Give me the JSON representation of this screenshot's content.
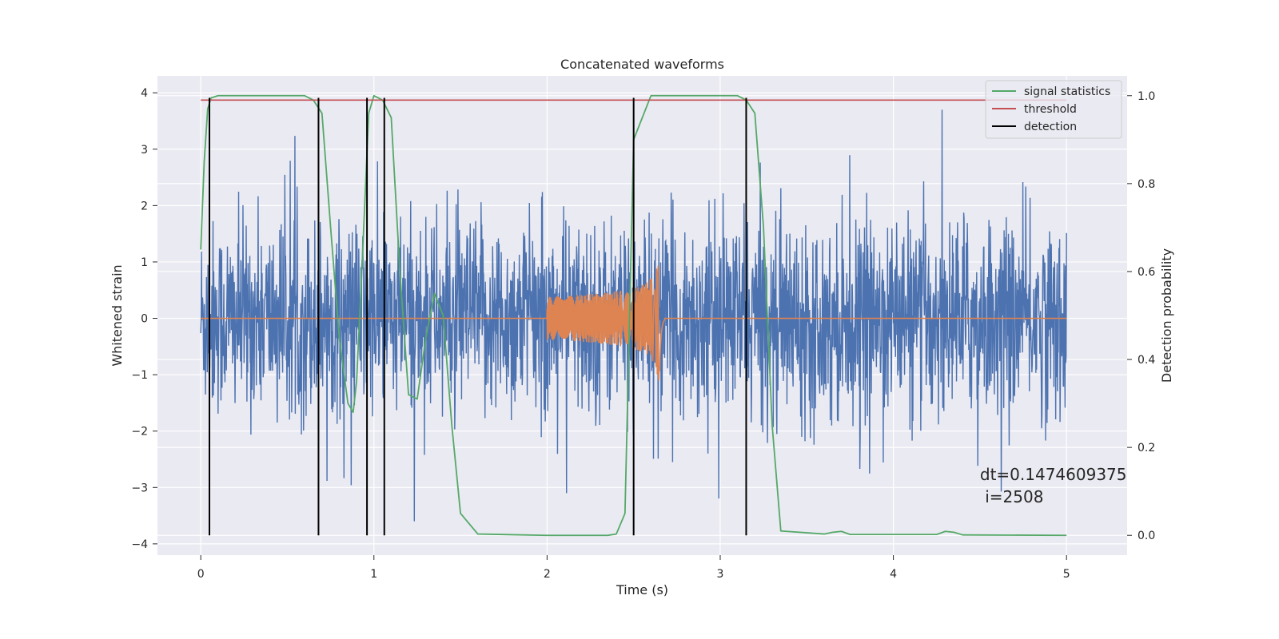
{
  "chart_data": {
    "type": "line",
    "title": "Concatenated waveforms",
    "xlabel": "Time (s)",
    "ylabel": "Whitened strain",
    "ylabel_right": "Detection probability",
    "xlim": [
      -0.25,
      5.35
    ],
    "ylim": [
      -4.2,
      4.3
    ],
    "ylim_right": [
      -0.045,
      1.045
    ],
    "xticks": [
      0,
      1,
      2,
      3,
      4,
      5
    ],
    "yticks": [
      -4,
      -3,
      -2,
      -1,
      0,
      1,
      2,
      3,
      4
    ],
    "yticks_right": [
      0.0,
      0.2,
      0.4,
      0.6,
      0.8,
      1.0
    ],
    "ytick_labels": [
      "−4",
      "−3",
      "−2",
      "−1",
      "0",
      "1",
      "2",
      "3",
      "4"
    ],
    "ytick_right_labels": [
      "0.0",
      "0.2",
      "0.4",
      "0.6",
      "0.8",
      "1.0"
    ],
    "grid": true,
    "legend_position": "upper-right",
    "annotation": {
      "line1": "dt=0.1474609375",
      "line2": " i=2508",
      "x": 4.5,
      "y": -2.9
    },
    "noise": {
      "color": "#4c72b0",
      "x_range": [
        0,
        5
      ],
      "approx_range": [
        -3.6,
        3.7
      ]
    },
    "chirp": {
      "color": "#dd8452",
      "start": 2.0,
      "merger": 2.65,
      "peak_amplitude": 1.45
    },
    "series": [
      {
        "name": "signal statistics",
        "color": "#55a868",
        "axis": "right",
        "x": [
          0,
          0.02,
          0.04,
          0.06,
          0.1,
          0.2,
          0.6,
          0.65,
          0.7,
          0.75,
          0.8,
          0.85,
          0.88,
          0.9,
          0.93,
          0.97,
          1.0,
          1.05,
          1.1,
          1.15,
          1.2,
          1.25,
          1.3,
          1.35,
          1.4,
          1.45,
          1.5,
          1.6,
          2.0,
          2.35,
          2.4,
          2.45,
          2.5,
          2.6,
          3.1,
          3.15,
          3.2,
          3.25,
          3.3,
          3.35,
          3.6,
          3.65,
          3.7,
          3.75,
          4.25,
          4.3,
          4.35,
          4.4,
          5.0
        ],
        "y": [
          0.65,
          0.85,
          0.97,
          0.995,
          1.0,
          1.0,
          1.0,
          0.99,
          0.96,
          0.7,
          0.45,
          0.3,
          0.28,
          0.35,
          0.6,
          0.96,
          1.0,
          0.99,
          0.95,
          0.6,
          0.32,
          0.31,
          0.45,
          0.55,
          0.5,
          0.25,
          0.05,
          0.003,
          0.0,
          0.0,
          0.003,
          0.05,
          0.9,
          1.0,
          1.0,
          0.99,
          0.96,
          0.7,
          0.25,
          0.01,
          0.003,
          0.007,
          0.009,
          0.002,
          0.002,
          0.009,
          0.007,
          0.001,
          0.0
        ]
      },
      {
        "name": "threshold",
        "color": "#c44e52",
        "axis": "right",
        "x": [
          0,
          5
        ],
        "y": [
          0.99,
          0.99
        ]
      },
      {
        "name": "detection",
        "color": "#000000",
        "axis": "right",
        "x": [
          0.05,
          0.68,
          0.96,
          1.06,
          2.5,
          3.15
        ],
        "y_range": [
          0.0,
          0.995
        ]
      }
    ]
  }
}
